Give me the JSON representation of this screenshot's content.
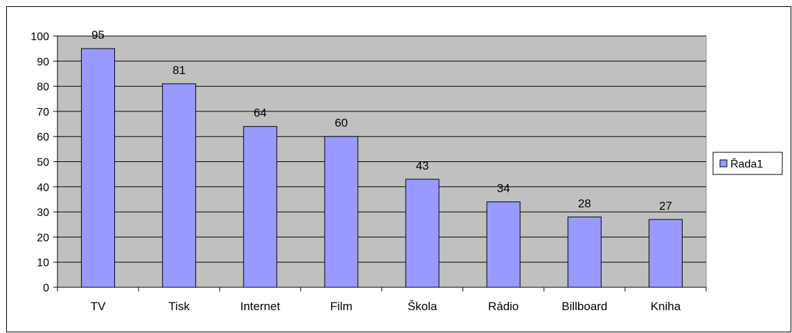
{
  "chart_data": {
    "type": "bar",
    "categories": [
      "TV",
      "Tisk",
      "Internet",
      "Film",
      "Škola",
      "Rádio",
      "Billboard",
      "Kniha"
    ],
    "series": [
      {
        "name": "Řada1",
        "values": [
          95,
          81,
          64,
          60,
          43,
          34,
          28,
          27
        ]
      }
    ],
    "data_labels": [
      "95",
      "81",
      "64",
      "60",
      "43",
      "34",
      "28",
      "27"
    ],
    "ylim": [
      0,
      100
    ],
    "y_ticks": [
      0,
      10,
      20,
      30,
      40,
      50,
      60,
      70,
      80,
      90,
      100
    ],
    "grid": true,
    "legend_position": "right",
    "colors": {
      "bar_fill": "#9999FF",
      "plot_background": "#C0C0C0",
      "gridline": "#000000"
    }
  }
}
